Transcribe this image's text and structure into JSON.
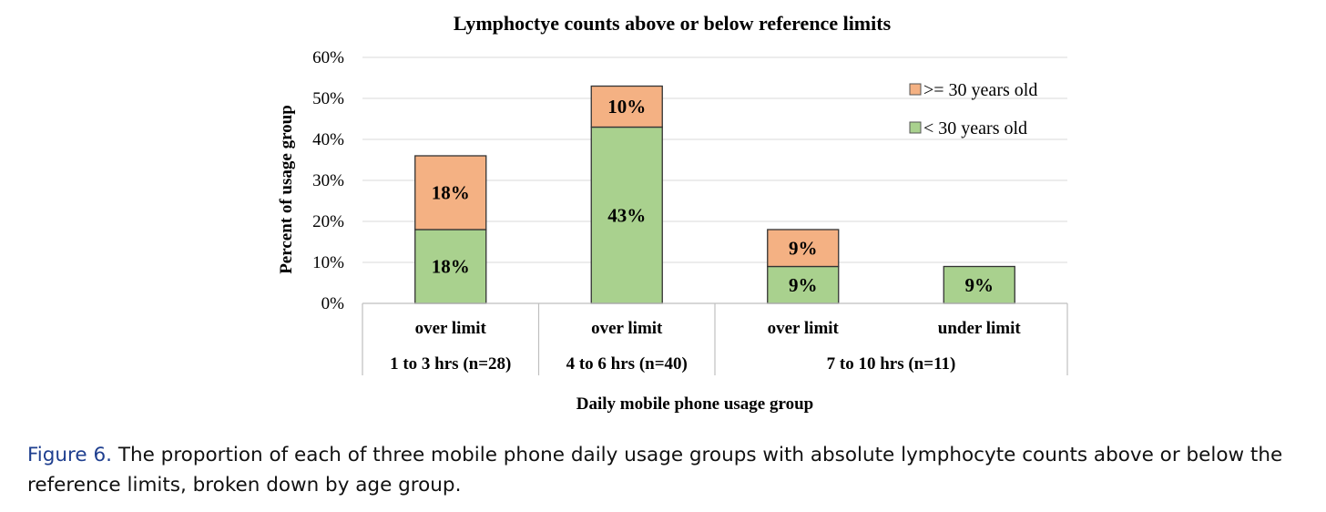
{
  "chart_data": {
    "type": "bar",
    "stacked": true,
    "title": "Lymphoctye counts above or below reference limits",
    "ylabel": "Percent of usage group",
    "xlabel": "Daily mobile phone usage group",
    "ylim": [
      0,
      60
    ],
    "yticks": [
      "0%",
      "10%",
      "20%",
      "30%",
      "40%",
      "50%",
      "60%"
    ],
    "grid": true,
    "legend_position": "top-right",
    "categories": [
      "over limit",
      "over limit",
      "over limit",
      "under limit"
    ],
    "groups": [
      {
        "label": "1 to 3 hrs (n=28)",
        "span": 1
      },
      {
        "label": "4 to 6 hrs (n=40)",
        "span": 1
      },
      {
        "label": "7 to 10 hrs (n=11)",
        "span": 2
      }
    ],
    "series": [
      {
        "name": "< 30 years old",
        "color": "#a9d18e",
        "values": [
          18,
          43,
          9,
          9
        ],
        "labels": [
          "18%",
          "43%",
          "9%",
          "9%"
        ]
      },
      {
        "name": ">= 30 years old",
        "color": "#f4b183",
        "values": [
          18,
          10,
          9,
          0
        ],
        "labels": [
          "18%",
          "10%",
          "9%",
          ""
        ]
      }
    ]
  },
  "caption": {
    "label": "Figure 6.",
    "text": "The proportion of each of three mobile phone daily usage groups with absolute lymphocyte counts above or below the reference limits, broken down by age group."
  }
}
